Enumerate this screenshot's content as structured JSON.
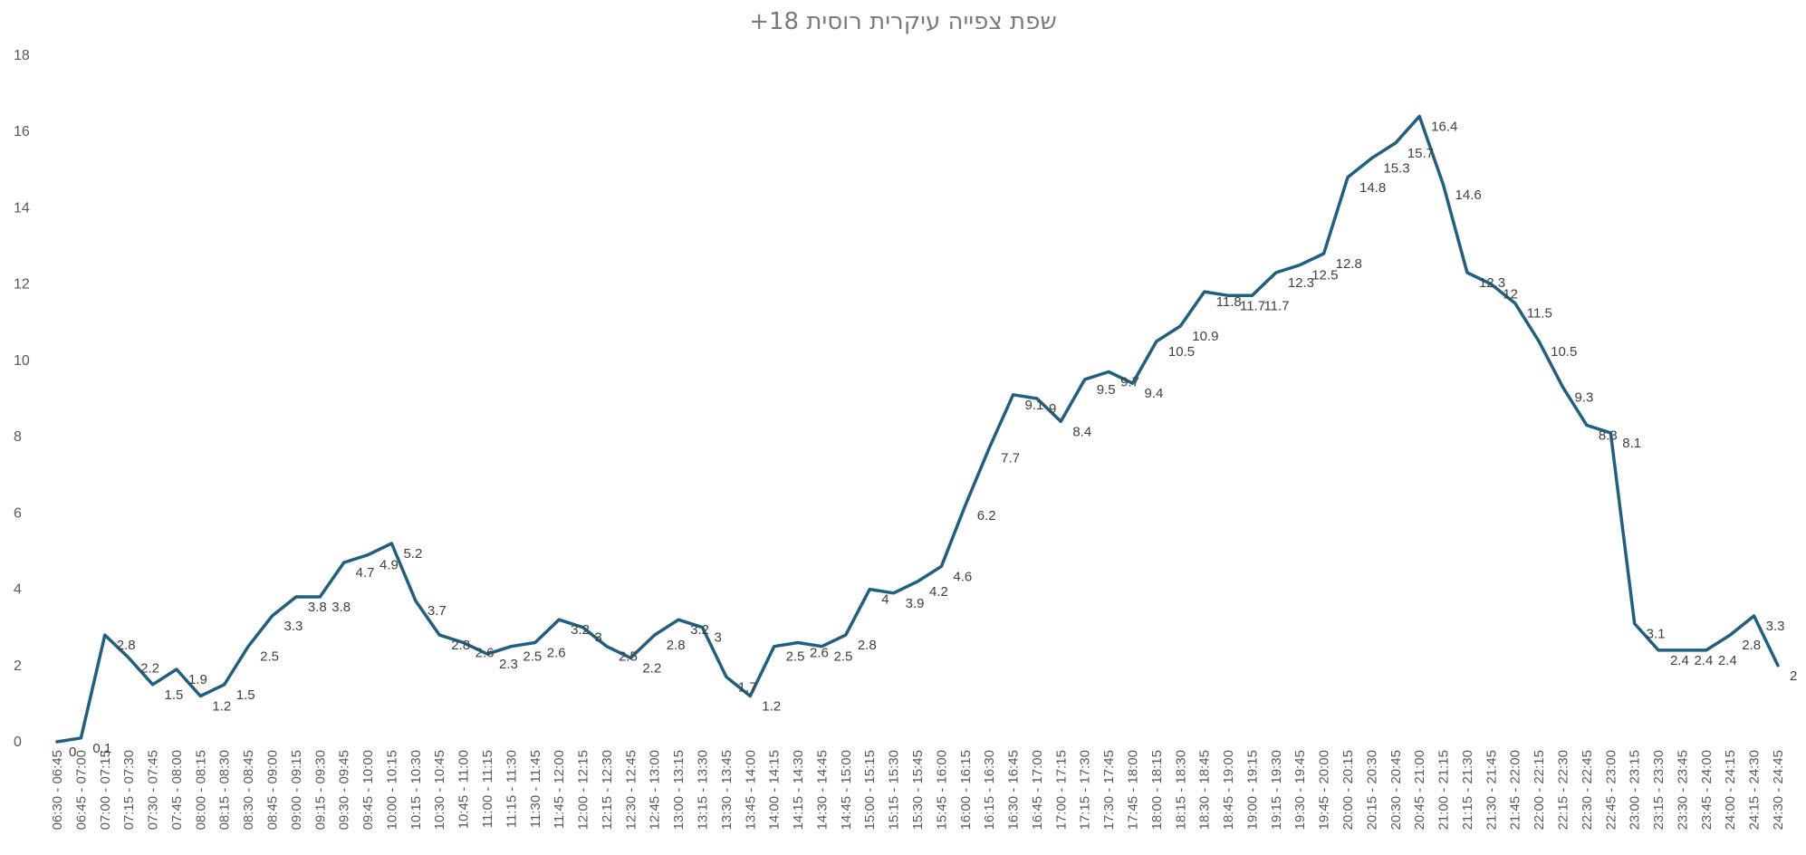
{
  "chart_data": {
    "type": "line",
    "title": "+18 שפת צפייה עיקרית רוסית",
    "xlabel": "",
    "ylabel": "",
    "ylim": [
      0,
      18
    ],
    "yticks": [
      0,
      2,
      4,
      6,
      8,
      10,
      12,
      14,
      16,
      18
    ],
    "grid": false,
    "legend": "none",
    "line_color": "#1f5f7f",
    "categories": [
      "06:30 - 06:45",
      "06:45 - 07:00",
      "07:00 - 07:15",
      "07:15 - 07:30",
      "07:30 - 07:45",
      "07:45 - 08:00",
      "08:00 - 08:15",
      "08:15 - 08:30",
      "08:30 - 08:45",
      "08:45 - 09:00",
      "09:00 - 09:15",
      "09:15 - 09:30",
      "09:30 - 09:45",
      "09:45 - 10:00",
      "10:00 - 10:15",
      "10:15 - 10:30",
      "10:30 - 10:45",
      "10:45 - 11:00",
      "11:00 - 11:15",
      "11:15 - 11:30",
      "11:30 - 11:45",
      "11:45 - 12:00",
      "12:00 - 12:15",
      "12:15 - 12:30",
      "12:30 - 12:45",
      "12:45 - 13:00",
      "13:00 - 13:15",
      "13:15 - 13:30",
      "13:30 - 13:45",
      "13:45 - 14:00",
      "14:00 - 14:15",
      "14:15 - 14:30",
      "14:30 - 14:45",
      "14:45 - 15:00",
      "15:00 - 15:15",
      "15:15 - 15:30",
      "15:30 - 15:45",
      "15:45 - 16:00",
      "16:00 - 16:15",
      "16:15 - 16:30",
      "16:30 - 16:45",
      "16:45 - 17:00",
      "17:00 - 17:15",
      "17:15 - 17:30",
      "17:30 - 17:45",
      "17:45 - 18:00",
      "18:00 - 18:15",
      "18:15 - 18:30",
      "18:30 - 18:45",
      "18:45 - 19:00",
      "19:00 - 19:15",
      "19:15 - 19:30",
      "19:30 - 19:45",
      "19:45 - 20:00",
      "20:00 - 20:15",
      "20:15 - 20:30",
      "20:30 - 20:45",
      "20:45 - 21:00",
      "21:00 - 21:15",
      "21:15 - 21:30",
      "21:30 - 21:45",
      "21:45 - 22:00",
      "22:00 - 22:15",
      "22:15 - 22:30",
      "22:30 - 22:45",
      "22:45 - 23:00",
      "23:00 - 23:15",
      "23:15 - 23:30",
      "23:30 - 23:45",
      "23:45 - 24:00",
      "24:00 - 24:15",
      "24:15 - 24:30",
      "24:30 - 24:45"
    ],
    "series": [
      {
        "values": [
          0,
          0.1,
          2.8,
          2.2,
          1.5,
          1.9,
          1.2,
          1.5,
          2.5,
          3.3,
          3.8,
          3.8,
          4.7,
          4.9,
          5.2,
          3.7,
          2.8,
          2.6,
          2.3,
          2.5,
          2.6,
          3.2,
          3,
          2.5,
          2.2,
          2.8,
          3.2,
          3,
          1.7,
          1.2,
          2.5,
          2.6,
          2.5,
          2.8,
          4,
          3.9,
          4.2,
          4.6,
          6.2,
          7.7,
          9.1,
          9,
          8.4,
          9.5,
          9.7,
          9.4,
          10.5,
          10.9,
          11.8,
          11.7,
          11.7,
          12.3,
          12.5,
          12.8,
          14.8,
          15.3,
          15.7,
          16.4,
          14.6,
          12.3,
          12,
          11.5,
          10.5,
          9.3,
          8.3,
          8.1,
          3.1,
          2.4,
          2.4,
          2.4,
          2.8,
          3.3,
          2
        ]
      }
    ]
  }
}
